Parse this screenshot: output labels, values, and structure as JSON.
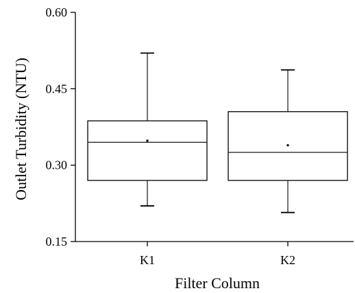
{
  "chart_data": {
    "type": "box",
    "xlabel": "Filter Column",
    "ylabel": "Outlet Turbidity (NTU)",
    "ylim": [
      0.15,
      0.6
    ],
    "yticks": [
      "0.15",
      "0.30",
      "0.45",
      "0.60"
    ],
    "ytick_values": [
      0.15,
      0.3,
      0.45,
      0.6
    ],
    "categories": [
      "K1",
      "K2"
    ],
    "boxes": [
      {
        "category": "K1",
        "whisker_low": 0.22,
        "q1": 0.27,
        "median": 0.345,
        "mean": 0.348,
        "q3": 0.387,
        "whisker_high": 0.52
      },
      {
        "category": "K2",
        "whisker_low": 0.207,
        "q1": 0.27,
        "median": 0.325,
        "mean": 0.339,
        "q3": 0.405,
        "whisker_high": 0.487
      }
    ],
    "grid": false,
    "legend": "none",
    "colors": {
      "stroke": "#000000",
      "background": "#ffffff"
    }
  }
}
